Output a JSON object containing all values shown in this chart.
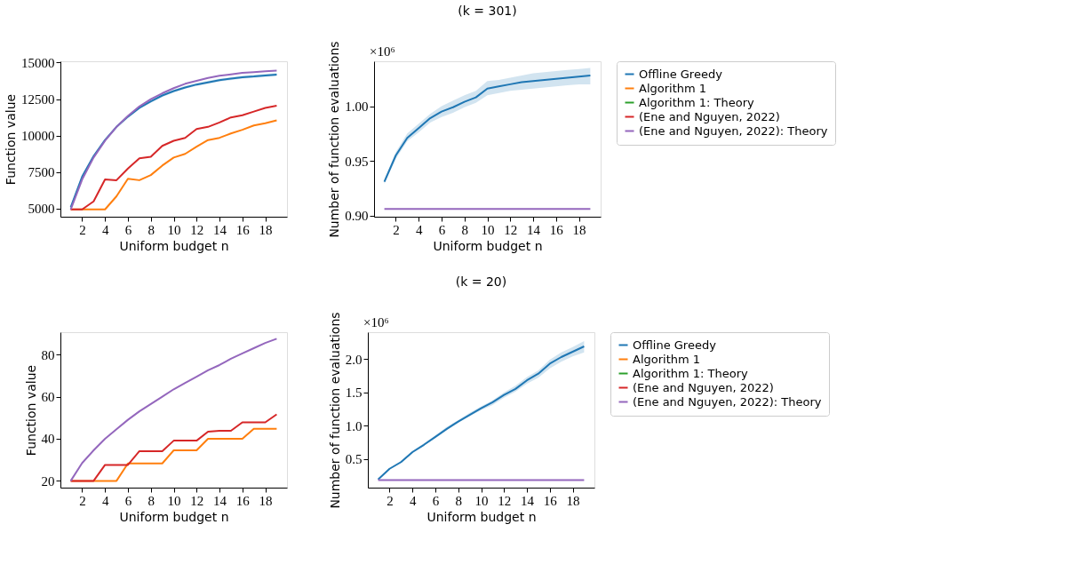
{
  "chart_data": [
    {
      "type": "line",
      "xlabel": "Uniform budget n",
      "ylabel": "Function value",
      "xlim": [
        0.1,
        19.9
      ],
      "xticks": [
        2,
        4,
        6,
        8,
        10,
        12,
        14,
        16,
        18
      ],
      "ylim": [
        4450,
        15090
      ],
      "yticks": [
        5000,
        7500,
        10000,
        12500,
        15000
      ],
      "grid": false,
      "x": [
        1,
        2,
        3,
        4,
        5,
        6,
        7,
        8,
        9,
        10,
        11,
        12,
        13,
        14,
        15,
        16,
        17,
        18,
        19
      ],
      "series": [
        {
          "color": "#1f77b4",
          "values": [
            5100,
            7200,
            8600,
            9700,
            10600,
            11300,
            11900,
            12350,
            12750,
            13050,
            13300,
            13500,
            13650,
            13800,
            13900,
            14000,
            14050,
            14120,
            14180
          ],
          "lower": [
            5000,
            7100,
            8500,
            9600,
            10500,
            11200,
            11800,
            12250,
            12650,
            12950,
            13200,
            13400,
            13550,
            13700,
            13800,
            13900,
            13950,
            14020,
            14080
          ],
          "upper": [
            5200,
            7300,
            8700,
            9800,
            10700,
            11400,
            12000,
            12450,
            12850,
            13150,
            13400,
            13600,
            13750,
            13900,
            14000,
            14100,
            14150,
            14220,
            14280
          ]
        },
        {
          "color": "#ff7f0e",
          "values": [
            4950,
            4950,
            4950,
            4950,
            5850,
            7050,
            6950,
            7300,
            7950,
            8500,
            8750,
            9250,
            9700,
            9850,
            10150,
            10400,
            10700,
            10850,
            11050
          ]
        },
        {
          "color": "#d62728",
          "values": [
            4950,
            4950,
            5500,
            7000,
            6950,
            7750,
            8450,
            8550,
            9300,
            9650,
            9850,
            10450,
            10600,
            10900,
            11250,
            11400,
            11650,
            11900,
            12050
          ]
        },
        {
          "color": "#9467bd",
          "values": [
            4950,
            7000,
            8500,
            9650,
            10600,
            11350,
            12000,
            12500,
            12900,
            13250,
            13550,
            13750,
            13950,
            14100,
            14200,
            14300,
            14350,
            14400,
            14450
          ]
        }
      ]
    },
    {
      "type": "line",
      "title": "(k = 301)",
      "xlabel": "Uniform budget n",
      "ylabel": "Number of function evaluations",
      "annotations": [
        "×10⁶"
      ],
      "xlim": [
        0.1,
        19.9
      ],
      "xticks": [
        2,
        4,
        6,
        8,
        10,
        12,
        14,
        16,
        18
      ],
      "ylim": [
        0.899,
        1.041
      ],
      "yticks": [
        {
          "value": 0.9,
          "label": "0.90"
        },
        0.95,
        {
          "value": 1.0,
          "label": "1.00"
        }
      ],
      "grid": false,
      "legend": "right",
      "x": [
        1,
        2,
        3,
        4,
        5,
        6,
        7,
        8,
        9,
        10,
        11,
        12,
        13,
        14,
        15,
        16,
        17,
        18,
        19
      ],
      "series": [
        {
          "name": "Offline Greedy",
          "color": "#1f77b4",
          "values": [
            0.931,
            0.955,
            0.971,
            0.98,
            0.989,
            0.995,
            0.999,
            1.004,
            1.008,
            1.016,
            1.018,
            1.02,
            1.022,
            1.023,
            1.024,
            1.025,
            1.026,
            1.027,
            1.028
          ],
          "lower": [
            0.929,
            0.952,
            0.968,
            0.976,
            0.985,
            0.99,
            0.994,
            0.999,
            1.003,
            1.01,
            1.012,
            1.014,
            1.015,
            1.016,
            1.017,
            1.018,
            1.019,
            1.02,
            1.02
          ],
          "upper": [
            0.933,
            0.958,
            0.975,
            0.984,
            0.993,
            1.0,
            1.005,
            1.01,
            1.014,
            1.023,
            1.024,
            1.026,
            1.028,
            1.03,
            1.031,
            1.032,
            1.033,
            1.034,
            1.035
          ]
        },
        {
          "name": "Algorithm 1",
          "color": "#ff7f0e",
          "values": [
            null,
            null,
            null,
            null,
            null,
            null,
            null,
            null,
            null,
            null,
            null,
            null,
            null,
            null,
            null,
            null,
            null,
            null,
            null
          ]
        },
        {
          "name": "Algorithm 1: Theory",
          "color": "#2ca02c",
          "values": [
            null,
            null,
            null,
            null,
            null,
            null,
            null,
            null,
            null,
            null,
            null,
            null,
            null,
            null,
            null,
            null,
            null,
            null,
            null
          ]
        },
        {
          "name": "(Ene and Nguyen, 2022)",
          "color": "#d62728",
          "values": [
            null,
            null,
            null,
            null,
            null,
            null,
            null,
            null,
            null,
            null,
            null,
            null,
            null,
            null,
            null,
            null,
            null,
            null,
            null
          ]
        },
        {
          "name": "(Ene and Nguyen, 2022): Theory",
          "color": "#9467bd",
          "values": [
            0.906,
            0.906,
            0.906,
            0.906,
            0.906,
            0.906,
            0.906,
            0.906,
            0.906,
            0.906,
            0.906,
            0.906,
            0.906,
            0.906,
            0.906,
            0.906,
            0.906,
            0.906,
            0.906
          ]
        }
      ]
    },
    {
      "type": "line",
      "xlabel": "Uniform budget n",
      "ylabel": "Function value",
      "xlim": [
        0.1,
        19.9
      ],
      "xticks": [
        2,
        4,
        6,
        8,
        10,
        12,
        14,
        16,
        18
      ],
      "ylim": [
        16.8,
        90.6
      ],
      "yticks": [
        20,
        40,
        60,
        80
      ],
      "grid": false,
      "x": [
        1,
        2,
        3,
        4,
        5,
        6,
        7,
        8,
        9,
        10,
        11,
        12,
        13,
        14,
        15,
        16,
        17,
        18,
        19
      ],
      "series": [
        {
          "color": "#ff7f0e",
          "values": [
            20,
            20,
            20,
            20,
            20,
            28.3,
            28.3,
            28.3,
            28.3,
            34.5,
            34.5,
            34.5,
            40,
            40,
            40,
            40,
            44.7,
            44.7,
            44.7
          ]
        },
        {
          "color": "#d62728",
          "values": [
            20,
            20,
            20,
            27.6,
            27.6,
            27.6,
            34.1,
            34.1,
            34.1,
            39.1,
            39.1,
            39.1,
            43.4,
            43.8,
            43.8,
            47.8,
            47.8,
            47.8,
            51.6
          ]
        },
        {
          "color": "#9467bd",
          "values": [
            20,
            28.5,
            34.5,
            40,
            44.5,
            49,
            53,
            56.5,
            60,
            63.5,
            66.5,
            69.5,
            72.5,
            75,
            78,
            80.5,
            83,
            85.5,
            87.5
          ]
        }
      ]
    },
    {
      "type": "line",
      "title": "(k = 20)",
      "xlabel": "Uniform budget n",
      "ylabel": "Number of function evaluations",
      "annotations": [
        "×10⁶"
      ],
      "xlim": [
        0.1,
        19.9
      ],
      "xticks": [
        2,
        4,
        6,
        8,
        10,
        12,
        14,
        16,
        18
      ],
      "ylim": [
        0.066,
        2.404
      ],
      "yticks": [
        0.5,
        {
          "value": 1.0,
          "label": "1.0"
        },
        1.5,
        {
          "value": 2.0,
          "label": "2.0"
        }
      ],
      "grid": false,
      "legend": "right",
      "x": [
        1,
        2,
        3,
        4,
        5,
        6,
        7,
        8,
        9,
        10,
        11,
        12,
        13,
        14,
        15,
        16,
        17,
        18,
        19
      ],
      "series": [
        {
          "name": "Offline Greedy",
          "color": "#1f77b4",
          "values": [
            0.19,
            0.35,
            0.45,
            0.6,
            0.71,
            0.83,
            0.95,
            1.06,
            1.16,
            1.26,
            1.35,
            1.46,
            1.55,
            1.68,
            1.78,
            1.93,
            2.03,
            2.11,
            2.19
          ],
          "lower": [
            0.18,
            0.34,
            0.44,
            0.59,
            0.7,
            0.81,
            0.93,
            1.04,
            1.14,
            1.23,
            1.31,
            1.42,
            1.51,
            1.63,
            1.72,
            1.86,
            1.96,
            2.04,
            2.1
          ],
          "upper": [
            0.2,
            0.36,
            0.47,
            0.62,
            0.73,
            0.85,
            0.98,
            1.08,
            1.19,
            1.29,
            1.38,
            1.5,
            1.6,
            1.73,
            1.83,
            1.99,
            2.1,
            2.18,
            2.27
          ]
        },
        {
          "name": "Algorithm 1",
          "color": "#ff7f0e",
          "values": [
            null,
            null,
            null,
            null,
            null,
            null,
            null,
            null,
            null,
            null,
            null,
            null,
            null,
            null,
            null,
            null,
            null,
            null,
            null
          ]
        },
        {
          "name": "Algorithm 1: Theory",
          "color": "#2ca02c",
          "values": [
            null,
            null,
            null,
            null,
            null,
            null,
            null,
            null,
            null,
            null,
            null,
            null,
            null,
            null,
            null,
            null,
            null,
            null,
            null
          ]
        },
        {
          "name": "(Ene and Nguyen, 2022)",
          "color": "#d62728",
          "values": [
            null,
            null,
            null,
            null,
            null,
            null,
            null,
            null,
            null,
            null,
            null,
            null,
            null,
            null,
            null,
            null,
            null,
            null,
            null
          ]
        },
        {
          "name": "(Ene and Nguyen, 2022): Theory",
          "color": "#9467bd",
          "values": [
            0.18,
            0.18,
            0.18,
            0.18,
            0.18,
            0.18,
            0.18,
            0.18,
            0.18,
            0.18,
            0.18,
            0.18,
            0.18,
            0.18,
            0.18,
            0.18,
            0.18,
            0.18,
            0.18
          ]
        }
      ]
    }
  ]
}
